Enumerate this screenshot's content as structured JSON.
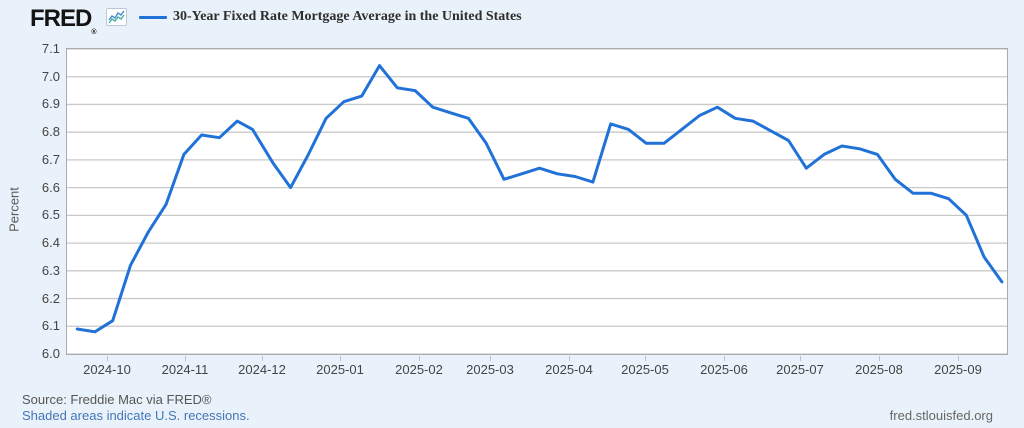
{
  "header": {
    "logo": "FRED",
    "logo_registered": "®",
    "sparkline_icon": "fred-sparkline-icon",
    "legend_label": "30-Year Fixed Rate Mortgage Average in the United States"
  },
  "colors": {
    "background": "#e9f2fb",
    "plot_background": "#ffffff",
    "series_line": "#2172d8",
    "gridline": "#c9c9c9",
    "plot_border": "#ababab",
    "axis_text": "#444444",
    "link": "#4576b5"
  },
  "y_axis": {
    "label": "Percent",
    "tick_labels": [
      "7.1",
      "7.0",
      "6.9",
      "6.8",
      "6.7",
      "6.6",
      "6.5",
      "6.4",
      "6.3",
      "6.2",
      "6.1",
      "6.0"
    ]
  },
  "x_axis": {
    "ticks": [
      {
        "label": "2024-10",
        "date": "2024-10-01"
      },
      {
        "label": "2024-11",
        "date": "2024-11-01"
      },
      {
        "label": "2024-12",
        "date": "2024-12-01"
      },
      {
        "label": "2025-01",
        "date": "2025-01-01"
      },
      {
        "label": "2025-02",
        "date": "2025-02-01"
      },
      {
        "label": "2025-03",
        "date": "2025-03-01"
      },
      {
        "label": "2025-04",
        "date": "2025-04-01"
      },
      {
        "label": "2025-05",
        "date": "2025-05-01"
      },
      {
        "label": "2025-06",
        "date": "2025-06-01"
      },
      {
        "label": "2025-07",
        "date": "2025-07-01"
      },
      {
        "label": "2025-08",
        "date": "2025-08-01"
      },
      {
        "label": "2025-09",
        "date": "2025-09-01"
      }
    ]
  },
  "footer": {
    "source": "Source: Freddie Mac via FRED®",
    "recessions_note": "Shaded areas indicate U.S. recessions.",
    "site": "fred.stlouisfed.org"
  },
  "chart_data": {
    "type": "line",
    "title": "30-Year Fixed Rate Mortgage Average in the United States",
    "ylabel": "Percent",
    "ylim": [
      6.0,
      7.1
    ],
    "grid": "horizontal",
    "legend_position": "top",
    "x_domain": [
      "2024-09-15",
      "2025-09-20"
    ],
    "series": [
      {
        "name": "30-Year Fixed Rate Mortgage Average in the United States",
        "color": "#2172d8",
        "points": [
          {
            "date": "2024-09-19",
            "value": 6.09
          },
          {
            "date": "2024-09-26",
            "value": 6.08
          },
          {
            "date": "2024-10-03",
            "value": 6.12
          },
          {
            "date": "2024-10-10",
            "value": 6.32
          },
          {
            "date": "2024-10-17",
            "value": 6.44
          },
          {
            "date": "2024-10-24",
            "value": 6.54
          },
          {
            "date": "2024-10-31",
            "value": 6.72
          },
          {
            "date": "2024-11-07",
            "value": 6.79
          },
          {
            "date": "2024-11-14",
            "value": 6.78
          },
          {
            "date": "2024-11-21",
            "value": 6.84
          },
          {
            "date": "2024-11-27",
            "value": 6.81
          },
          {
            "date": "2024-12-05",
            "value": 6.69
          },
          {
            "date": "2024-12-12",
            "value": 6.6
          },
          {
            "date": "2024-12-19",
            "value": 6.72
          },
          {
            "date": "2024-12-26",
            "value": 6.85
          },
          {
            "date": "2025-01-02",
            "value": 6.91
          },
          {
            "date": "2025-01-09",
            "value": 6.93
          },
          {
            "date": "2025-01-16",
            "value": 7.04
          },
          {
            "date": "2025-01-23",
            "value": 6.96
          },
          {
            "date": "2025-01-30",
            "value": 6.95
          },
          {
            "date": "2025-02-06",
            "value": 6.89
          },
          {
            "date": "2025-02-13",
            "value": 6.87
          },
          {
            "date": "2025-02-20",
            "value": 6.85
          },
          {
            "date": "2025-02-27",
            "value": 6.76
          },
          {
            "date": "2025-03-06",
            "value": 6.63
          },
          {
            "date": "2025-03-13",
            "value": 6.65
          },
          {
            "date": "2025-03-20",
            "value": 6.67
          },
          {
            "date": "2025-03-27",
            "value": 6.65
          },
          {
            "date": "2025-04-03",
            "value": 6.64
          },
          {
            "date": "2025-04-10",
            "value": 6.62
          },
          {
            "date": "2025-04-17",
            "value": 6.83
          },
          {
            "date": "2025-04-24",
            "value": 6.81
          },
          {
            "date": "2025-05-01",
            "value": 6.76
          },
          {
            "date": "2025-05-08",
            "value": 6.76
          },
          {
            "date": "2025-05-15",
            "value": 6.81
          },
          {
            "date": "2025-05-22",
            "value": 6.86
          },
          {
            "date": "2025-05-29",
            "value": 6.89
          },
          {
            "date": "2025-06-05",
            "value": 6.85
          },
          {
            "date": "2025-06-12",
            "value": 6.84
          },
          {
            "date": "2025-06-18",
            "value": 6.81
          },
          {
            "date": "2025-06-26",
            "value": 6.77
          },
          {
            "date": "2025-07-03",
            "value": 6.67
          },
          {
            "date": "2025-07-10",
            "value": 6.72
          },
          {
            "date": "2025-07-17",
            "value": 6.75
          },
          {
            "date": "2025-07-24",
            "value": 6.74
          },
          {
            "date": "2025-07-31",
            "value": 6.72
          },
          {
            "date": "2025-08-07",
            "value": 6.63
          },
          {
            "date": "2025-08-14",
            "value": 6.58
          },
          {
            "date": "2025-08-21",
            "value": 6.58
          },
          {
            "date": "2025-08-28",
            "value": 6.56
          },
          {
            "date": "2025-09-04",
            "value": 6.5
          },
          {
            "date": "2025-09-11",
            "value": 6.35
          },
          {
            "date": "2025-09-18",
            "value": 6.26
          }
        ]
      }
    ]
  }
}
